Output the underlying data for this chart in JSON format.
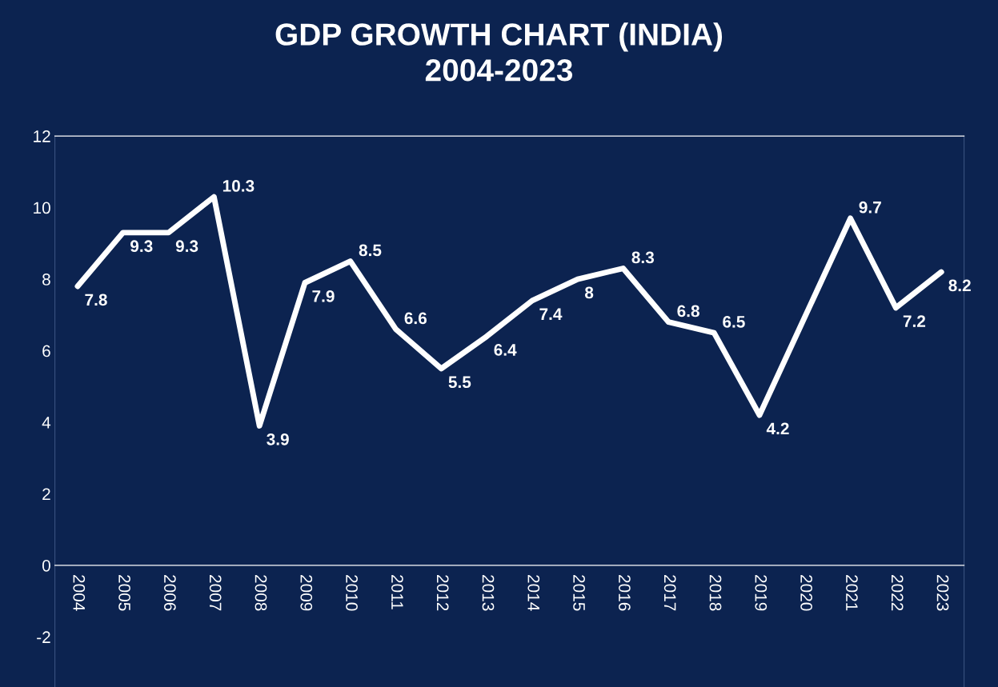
{
  "chart_data": {
    "type": "line",
    "title": "GDP GROWTH CHART (INDIA)\n2004-2023",
    "categories": [
      "2004",
      "2005",
      "2006",
      "2007",
      "2008",
      "2009",
      "2010",
      "2011",
      "2012",
      "2013",
      "2014",
      "2015",
      "2016",
      "2017",
      "2018",
      "2019",
      "2020",
      "2021",
      "2022",
      "2023"
    ],
    "series": [
      {
        "color": "#ffffff",
        "values": [
          7.8,
          9.3,
          9.3,
          10.3,
          3.9,
          7.9,
          8.5,
          6.6,
          5.5,
          6.4,
          7.4,
          8,
          8.3,
          6.8,
          6.5,
          4.2,
          null,
          9.7,
          7.2,
          8.2
        ]
      }
    ],
    "ylim": [
      -3.4,
      12
    ],
    "yticks": [
      -2,
      0,
      2,
      4,
      6,
      8,
      10,
      12
    ],
    "data_labels": true,
    "grid": false,
    "marker": "none",
    "line_style": "solid",
    "legend": false
  }
}
